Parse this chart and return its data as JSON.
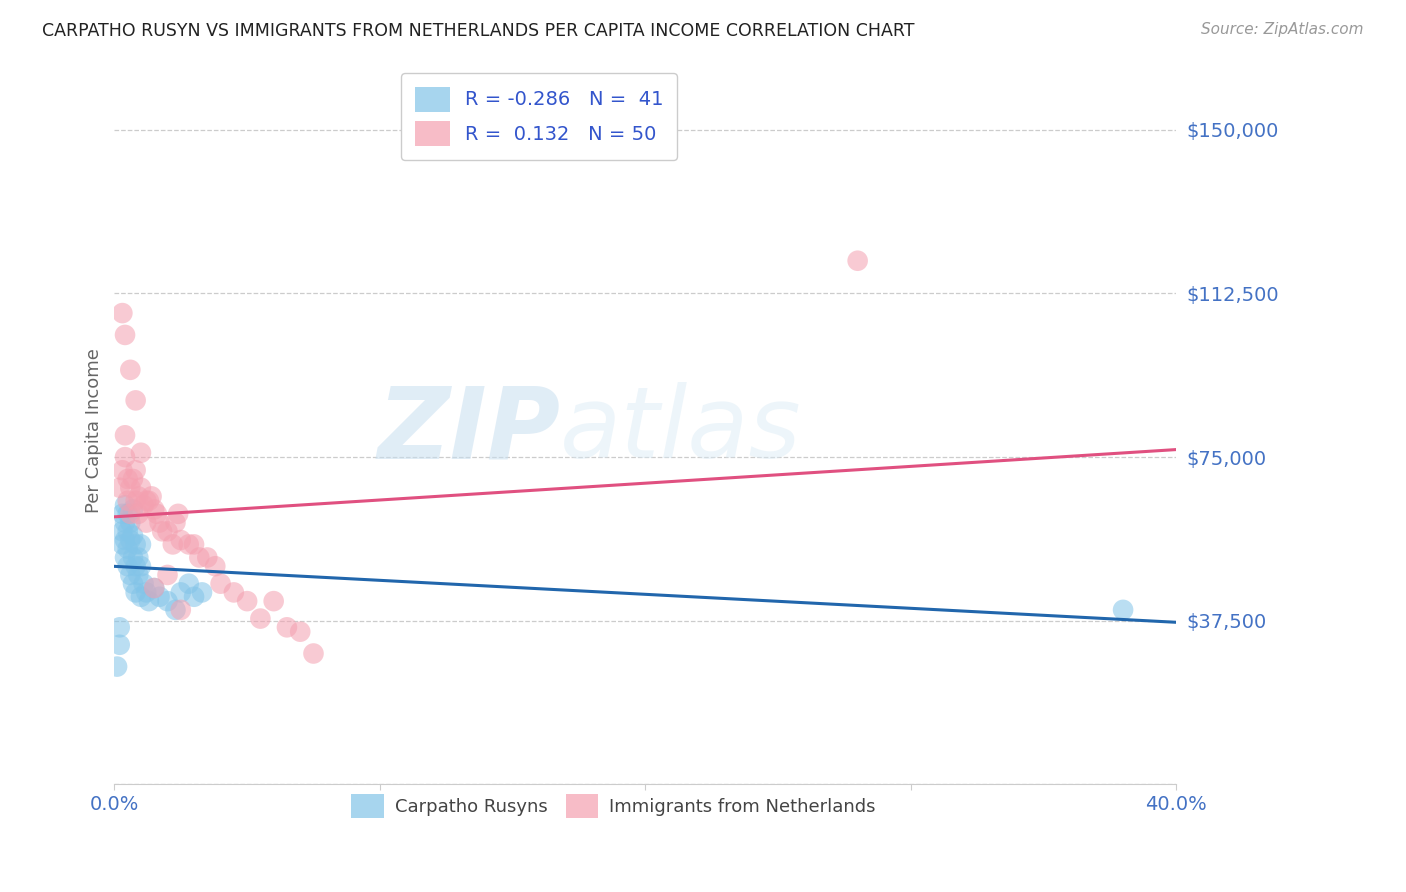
{
  "title": "CARPATHO RUSYN VS IMMIGRANTS FROM NETHERLANDS PER CAPITA INCOME CORRELATION CHART",
  "source": "Source: ZipAtlas.com",
  "ylabel": "Per Capita Income",
  "xlim": [
    0,
    0.4
  ],
  "ylim": [
    0,
    162000
  ],
  "blue_color": "#82c4e8",
  "pink_color": "#f4a0b0",
  "line_blue": "#2166ac",
  "line_pink": "#e05080",
  "title_color": "#222222",
  "axis_label_color": "#666666",
  "tick_color": "#4472c4",
  "watermark_zip": "ZIP",
  "watermark_atlas": "atlas",
  "background_color": "#ffffff",
  "grid_color": "#cccccc",
  "blue_scatter_x": [
    0.001,
    0.002,
    0.002,
    0.003,
    0.003,
    0.003,
    0.004,
    0.004,
    0.004,
    0.004,
    0.005,
    0.005,
    0.005,
    0.005,
    0.006,
    0.006,
    0.006,
    0.007,
    0.007,
    0.007,
    0.007,
    0.008,
    0.008,
    0.008,
    0.009,
    0.009,
    0.01,
    0.01,
    0.01,
    0.011,
    0.012,
    0.013,
    0.015,
    0.017,
    0.02,
    0.023,
    0.025,
    0.028,
    0.03,
    0.033,
    0.38
  ],
  "blue_scatter_y": [
    27000,
    32000,
    36000,
    55000,
    58000,
    62000,
    60000,
    56000,
    64000,
    52000,
    58000,
    54000,
    62000,
    50000,
    60000,
    56000,
    48000,
    57000,
    52000,
    46000,
    63000,
    55000,
    50000,
    44000,
    52000,
    48000,
    55000,
    50000,
    43000,
    46000,
    44000,
    42000,
    45000,
    43000,
    42000,
    40000,
    44000,
    46000,
    43000,
    44000,
    40000
  ],
  "pink_scatter_x": [
    0.002,
    0.003,
    0.004,
    0.004,
    0.005,
    0.005,
    0.006,
    0.006,
    0.007,
    0.008,
    0.008,
    0.009,
    0.009,
    0.01,
    0.011,
    0.012,
    0.013,
    0.014,
    0.015,
    0.016,
    0.017,
    0.018,
    0.02,
    0.022,
    0.023,
    0.024,
    0.025,
    0.028,
    0.03,
    0.032,
    0.035,
    0.038,
    0.04,
    0.045,
    0.05,
    0.055,
    0.06,
    0.065,
    0.07,
    0.075,
    0.003,
    0.004,
    0.006,
    0.008,
    0.01,
    0.012,
    0.015,
    0.02,
    0.025,
    0.28
  ],
  "pink_scatter_y": [
    68000,
    72000,
    80000,
    75000,
    70000,
    65000,
    68000,
    62000,
    70000,
    65000,
    72000,
    66000,
    62000,
    68000,
    64000,
    60000,
    65000,
    66000,
    63000,
    62000,
    60000,
    58000,
    58000,
    55000,
    60000,
    62000,
    56000,
    55000,
    55000,
    52000,
    52000,
    50000,
    46000,
    44000,
    42000,
    38000,
    42000,
    36000,
    35000,
    30000,
    108000,
    103000,
    95000,
    88000,
    76000,
    65000,
    45000,
    48000,
    40000,
    120000
  ]
}
